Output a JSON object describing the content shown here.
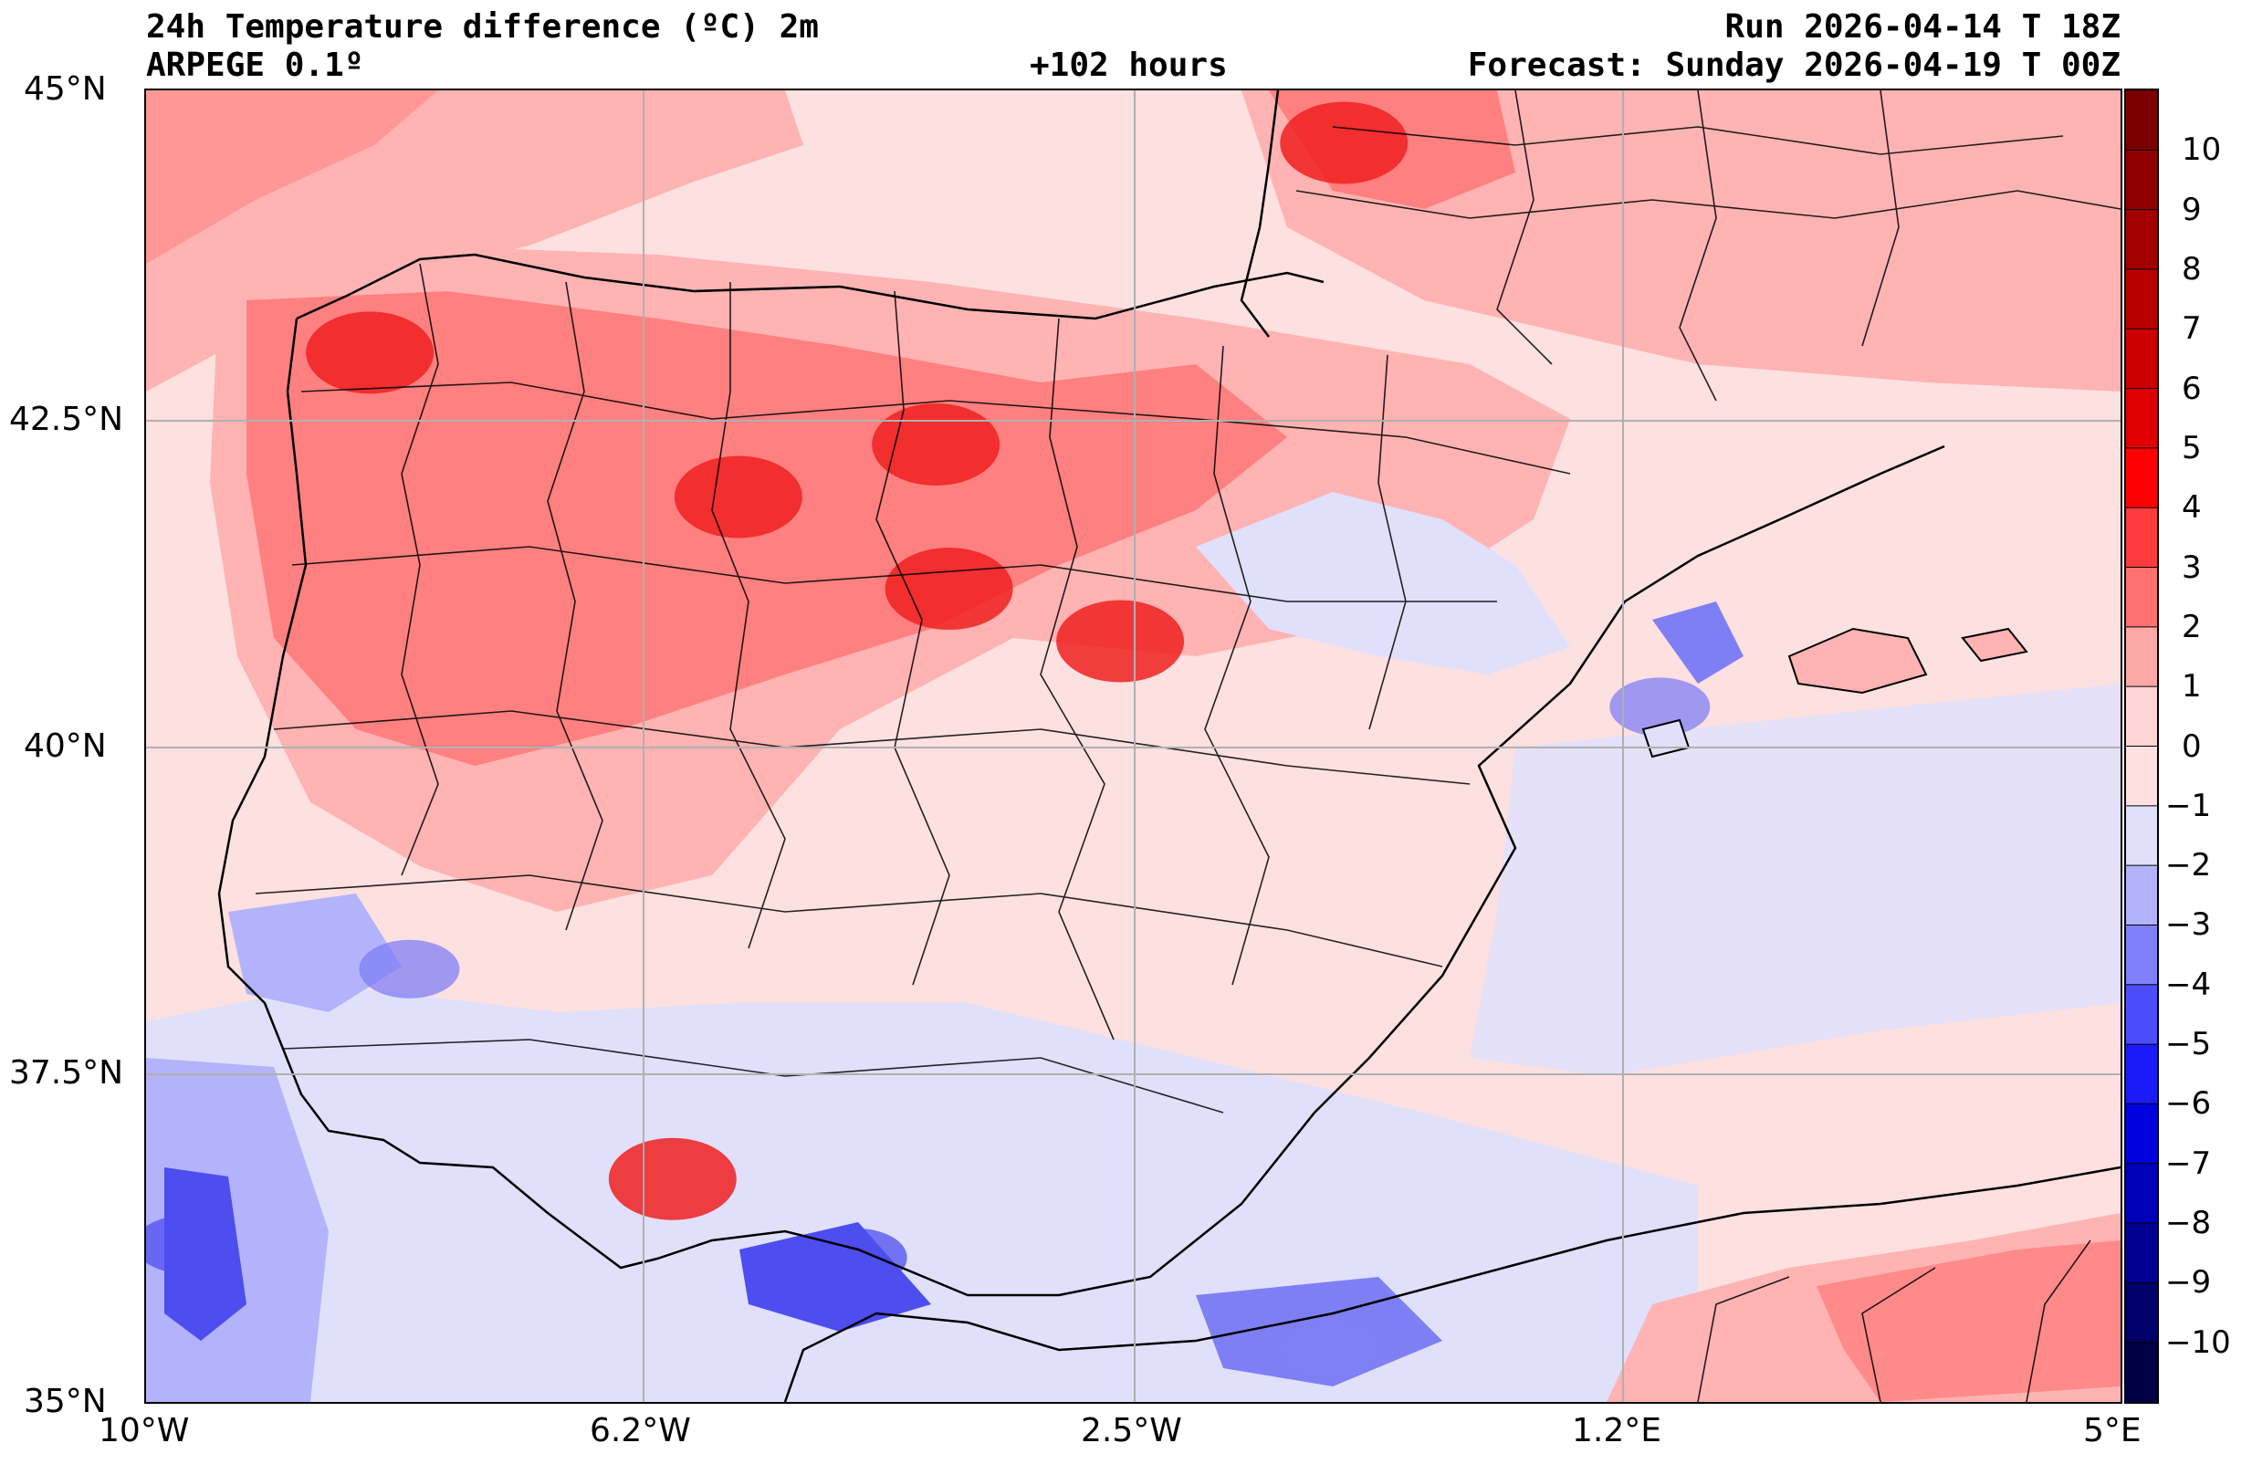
{
  "header": {
    "title": "24h Temperature difference (ºC) 2m",
    "model": "ARPEGE 0.1º",
    "lead_time": "+102 hours",
    "run": "Run 2026-04-14 T 18Z",
    "forecast": "Forecast: Sunday 2026-04-19 T 00Z"
  },
  "map": {
    "region": "Iberian Peninsula",
    "lat_range": [
      35,
      45
    ],
    "lon_range": [
      -10,
      5
    ],
    "lat_ticks": [
      "45°N",
      "42.5°N",
      "40°N",
      "37.5°N",
      "35°N"
    ],
    "lon_ticks": [
      "10°W",
      "6.2°W",
      "2.5°W",
      "1.2°E",
      "5°E"
    ],
    "hot_spots": [
      {
        "lon": -8.3,
        "lat": 43.0,
        "level": 4
      },
      {
        "lon": -5.5,
        "lat": 41.9,
        "level": 4
      },
      {
        "lon": -4.0,
        "lat": 42.3,
        "level": 4
      },
      {
        "lon": -3.9,
        "lat": 41.2,
        "level": 4
      },
      {
        "lon": -2.6,
        "lat": 40.8,
        "level": 4
      },
      {
        "lon": -0.9,
        "lat": 44.6,
        "level": 4
      },
      {
        "lon": -6.0,
        "lat": 36.7,
        "level": 4
      }
    ],
    "cold_spots": [
      {
        "lon": -9.7,
        "lat": 36.2,
        "level": -3
      },
      {
        "lon": -4.6,
        "lat": 36.1,
        "level": -3
      },
      {
        "lon": -1.0,
        "lat": 35.4,
        "level": -2
      },
      {
        "lon": 1.5,
        "lat": 40.3,
        "level": -2
      },
      {
        "lon": -8.0,
        "lat": 38.3,
        "level": -2
      }
    ]
  },
  "colorbar": {
    "unit": "ºC",
    "levels": [
      "10",
      "9",
      "8",
      "7",
      "6",
      "5",
      "4",
      "3",
      "2",
      "1",
      "0",
      "−1",
      "−2",
      "−3",
      "−4",
      "−5",
      "−6",
      "−7",
      "−8",
      "−9",
      "−10"
    ],
    "colors": [
      "#7a0000",
      "#8e0000",
      "#a30000",
      "#b80000",
      "#cc0000",
      "#e00000",
      "#ff0000",
      "#ff3b3b",
      "#ff7070",
      "#ffa8a8",
      "#ffd5d5",
      "#fde0e0",
      "#e0e0fb",
      "#b3b3fb",
      "#8080fb",
      "#4d4dfb",
      "#1a1afb",
      "#0000e0",
      "#0000b8",
      "#000090",
      "#000068",
      "#000045"
    ]
  },
  "colors": {
    "warm1": "#fde0e0",
    "warm2": "#ffb3b3",
    "warm3": "#ff8080",
    "warm4": "#ff4d4d",
    "warm5": "#f02020",
    "cool1": "#e0e0fb",
    "cool2": "#b3b3fb",
    "cool3": "#7f7ff5",
    "cool4": "#4d4df0"
  }
}
